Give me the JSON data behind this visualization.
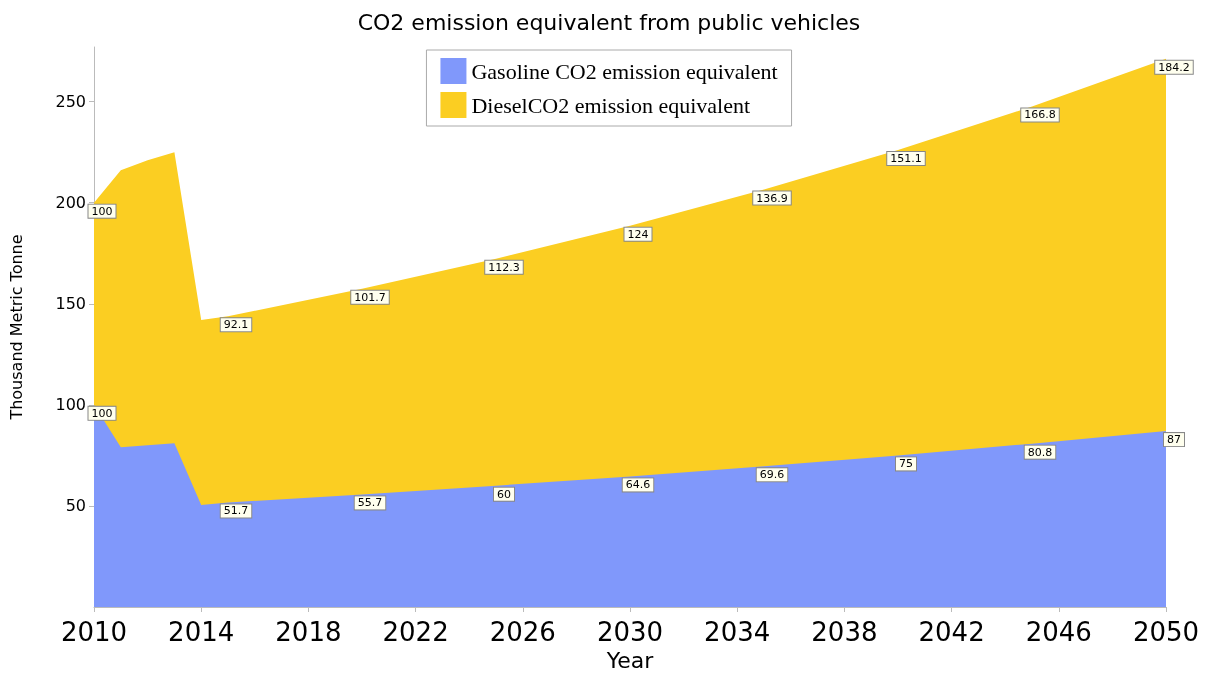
{
  "chart_data": {
    "type": "area",
    "title": "CO2 emission equivalent from public vehicles",
    "xlabel": "Year",
    "ylabel": "Thousand Metric Tonne",
    "stacked": true,
    "legend": "top",
    "marker": "none",
    "x": [
      2010,
      2011,
      2012,
      2013,
      2014,
      2015,
      2020,
      2025,
      2030,
      2035,
      2040,
      2045,
      2050
    ],
    "series": [
      {
        "name": "Gasoline CO2 emission equivalent",
        "color": "#8098fb",
        "values": [
          100,
          79,
          80,
          81,
          50.5,
          51.7,
          55.7,
          60,
          64.6,
          69.6,
          75,
          80.8,
          87
        ],
        "value_labels": [
          "100",
          null,
          null,
          null,
          null,
          "51.7",
          "55.7",
          "60",
          "64.6",
          "69.6",
          "75",
          "80.8",
          "87"
        ]
      },
      {
        "name": "DieselCO2 emission equivalent",
        "color": "#fbce22",
        "values": [
          100,
          137,
          141,
          144,
          91.5,
          92.1,
          101.7,
          112.3,
          124,
          136.9,
          151.1,
          166.8,
          184.2
        ],
        "value_labels": [
          "100",
          null,
          null,
          null,
          null,
          "92.1",
          "101.7",
          "112.3",
          "124",
          "136.9",
          "151.1",
          "166.8",
          "184.2"
        ]
      }
    ],
    "xlim": [
      2010,
      2050
    ],
    "xticks": [
      {
        "value": 2010,
        "label": "2010"
      },
      {
        "value": 2014,
        "label": "2014"
      },
      {
        "value": 2018,
        "label": "2018"
      },
      {
        "value": 2022,
        "label": "2022"
      },
      {
        "value": 2026,
        "label": "2026"
      },
      {
        "value": 2030,
        "label": "2030"
      },
      {
        "value": 2034,
        "label": "2034"
      },
      {
        "value": 2038,
        "label": "2038"
      },
      {
        "value": 2042,
        "label": "2042"
      },
      {
        "value": 2046,
        "label": "2046"
      },
      {
        "value": 2050,
        "label": "2050"
      }
    ],
    "ylim": [
      0,
      277
    ],
    "yticks": [
      50,
      100,
      150,
      200,
      250
    ]
  }
}
